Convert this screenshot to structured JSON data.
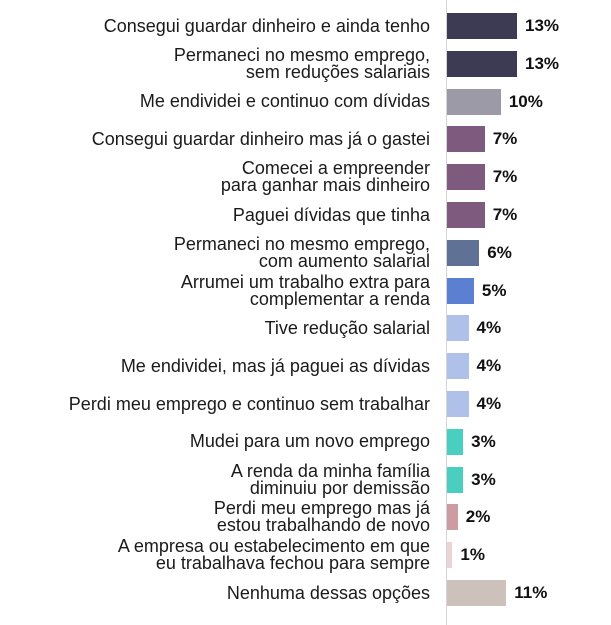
{
  "chart_data": {
    "type": "bar",
    "orientation": "horizontal",
    "value_suffix": "%",
    "categories": [
      [
        "Consegui guardar dinheiro e ainda tenho"
      ],
      [
        "Permaneci no mesmo emprego,",
        "sem reduções salariais"
      ],
      [
        "Me endividei e continuo com dívidas"
      ],
      [
        "Consegui guardar dinheiro mas já o gastei"
      ],
      [
        "Comecei a empreender",
        "para ganhar mais dinheiro"
      ],
      [
        "Paguei dívidas que tinha"
      ],
      [
        "Permaneci no mesmo emprego,",
        "com aumento salarial"
      ],
      [
        "Arrumei um trabalho extra para",
        "complementar a renda"
      ],
      [
        "Tive redução salarial"
      ],
      [
        "Me endividei, mas já paguei as dívidas"
      ],
      [
        "Perdi meu emprego e continuo sem trabalhar"
      ],
      [
        "Mudei para um novo emprego"
      ],
      [
        "A renda da minha família",
        "diminuiu por demissão"
      ],
      [
        "Perdi meu emprego mas já",
        "estou trabalhando de novo"
      ],
      [
        "A empresa ou estabelecimento em que",
        "eu trabalhava fechou para sempre"
      ],
      [
        "Nenhuma dessas opções"
      ]
    ],
    "values": [
      13,
      13,
      10,
      7,
      7,
      7,
      6,
      5,
      4,
      4,
      4,
      3,
      3,
      2,
      1,
      11
    ],
    "colors": [
      "#3d3a53",
      "#3d3a53",
      "#9c9aa6",
      "#7e5a7f",
      "#7e5a7f",
      "#7e5a7f",
      "#5f7295",
      "#5b7fd1",
      "#b0c1e9",
      "#b0c1e9",
      "#b0c1e9",
      "#49cfc0",
      "#49cfc0",
      "#cd9ba2",
      "#ead4d8",
      "#ccc2bb"
    ],
    "xlim": [
      0,
      13
    ],
    "grid": false,
    "legend": "none"
  }
}
